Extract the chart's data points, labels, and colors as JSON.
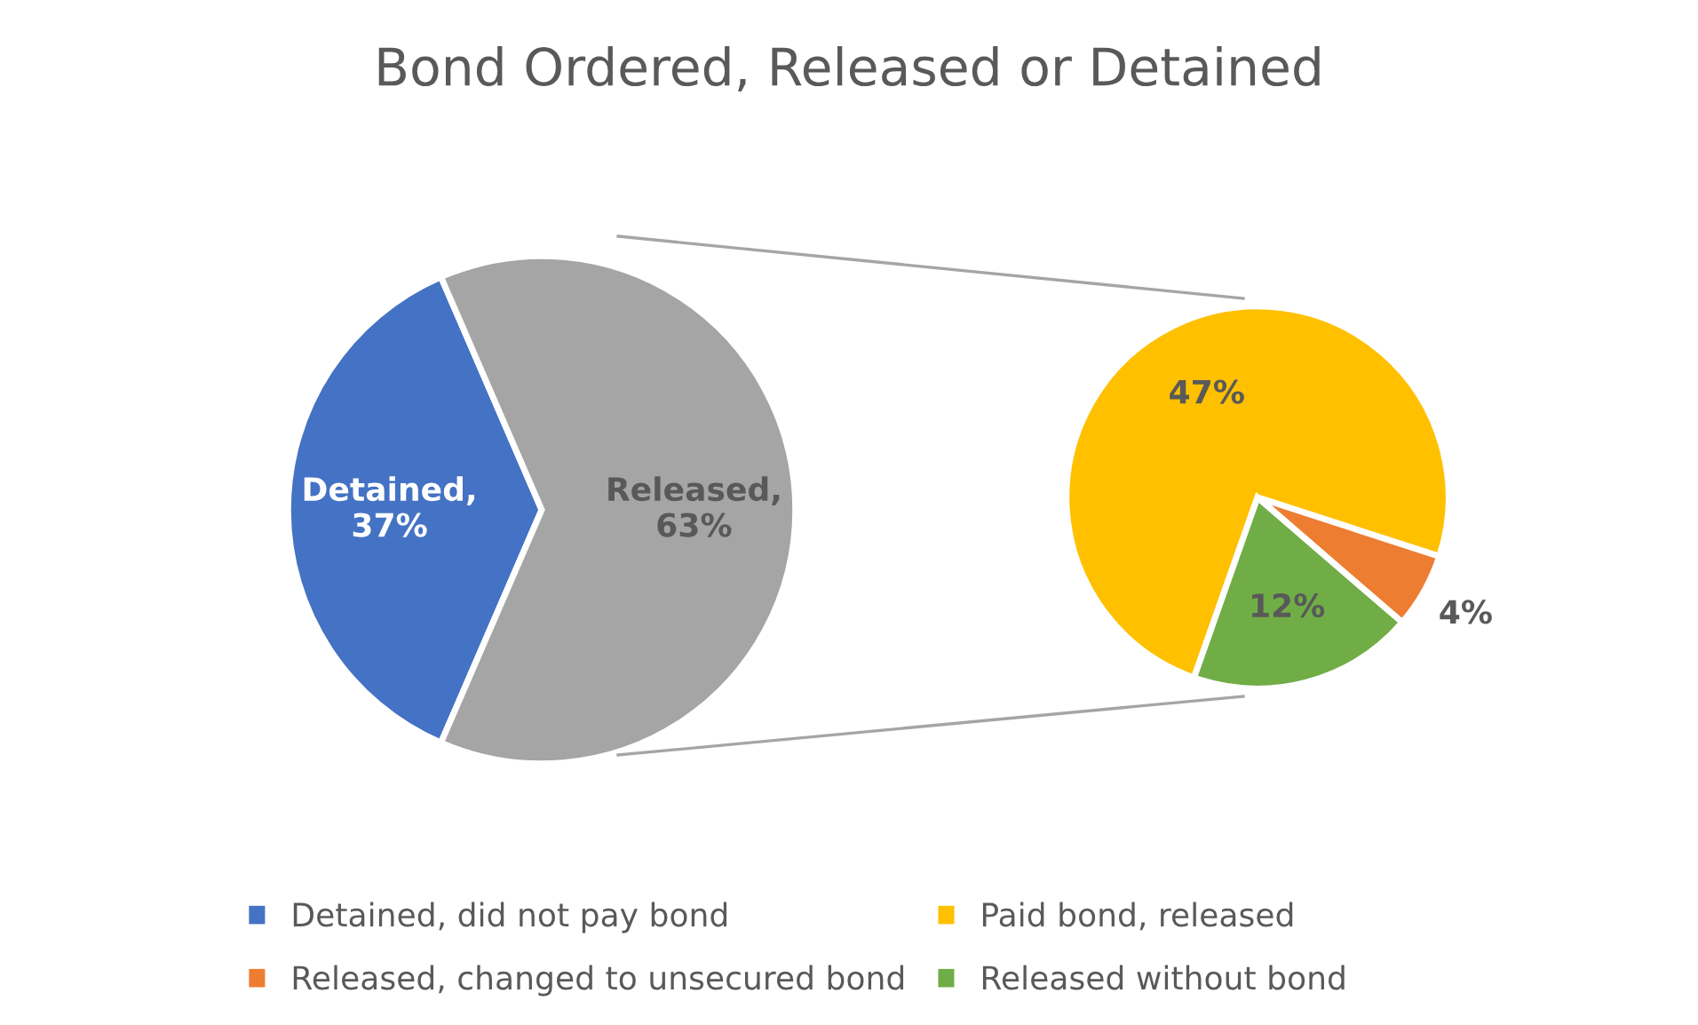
{
  "chart_data": [
    {
      "type": "pie",
      "title": "Bond Ordered, Released or Detained",
      "categories": [
        "Detained, did not pay bond",
        null
      ],
      "values": [
        37,
        63
      ],
      "colors": [
        "#4472c4",
        "#a5a5a5"
      ],
      "value_labels": [
        "Detained,\n37%",
        "Released,\n63%"
      ],
      "legend": "bottom"
    },
    {
      "type": "pie",
      "categories": [
        "Paid bond, released",
        "Released, changed to unsecured bond",
        "Released without bond"
      ],
      "values": [
        47,
        4,
        12
      ],
      "colors": [
        "#ffc000",
        "#ed7d31",
        "#70ad47"
      ],
      "value_labels": [
        "47%",
        "4%",
        "12%"
      ],
      "legend": "bottom"
    }
  ]
}
